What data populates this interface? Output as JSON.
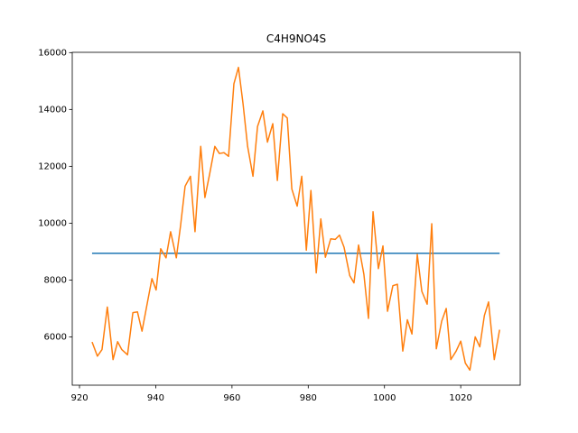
{
  "chart_data": {
    "type": "line",
    "title": "C4H9NO4S",
    "xlim": [
      918.1,
      1035.6
    ],
    "ylim": [
      4300,
      16010
    ],
    "xticks": [
      920,
      940,
      960,
      980,
      1000,
      1020
    ],
    "yticks": [
      6000,
      8000,
      10000,
      12000,
      14000,
      16000
    ],
    "series": [
      {
        "color": "#1f77b4",
        "x": [
          923.3,
          1030.2
        ],
        "values": [
          8940,
          8940
        ]
      },
      {
        "color": "#ff7f0e",
        "x": [
          923.3,
          924.7,
          925.9,
          927.3,
          928.8,
          930,
          931.1,
          932.6,
          934,
          935.2,
          936.4,
          937.8,
          939,
          940.1,
          941.3,
          942.7,
          943.9,
          945.4,
          946.5,
          947.7,
          949.1,
          950.3,
          951.8,
          952.9,
          954.1,
          955.5,
          956.7,
          957.9,
          959.1,
          960.5,
          961.7,
          962.9,
          964.1,
          965.5,
          966.7,
          968.1,
          969.3,
          970.7,
          971.9,
          973.3,
          974.5,
          975.7,
          977.1,
          978.3,
          979.5,
          980.7,
          982.1,
          983.3,
          984.5,
          985.9,
          987.1,
          988.2,
          989.4,
          990.9,
          992,
          993.2,
          994.6,
          995.8,
          997,
          998.4,
          999.6,
          1000.8,
          1002.2,
          1003.4,
          1004.8,
          1006,
          1007.2,
          1008.6,
          1009.8,
          1011.2,
          1012.4,
          1013.6,
          1015,
          1016.2,
          1017.4,
          1018.8,
          1020,
          1021.2,
          1022.4,
          1023.8,
          1025,
          1026.2,
          1027.3,
          1028.8,
          1030.2
        ],
        "values": [
          5820,
          5320,
          5550,
          7050,
          5200,
          5830,
          5550,
          5370,
          6850,
          6880,
          6200,
          7200,
          8050,
          7650,
          9100,
          8780,
          9700,
          8780,
          9900,
          11300,
          11650,
          9700,
          12700,
          10900,
          11700,
          12700,
          12450,
          12480,
          12350,
          14900,
          15480,
          14200,
          12700,
          11650,
          13400,
          13950,
          12850,
          13500,
          11500,
          13850,
          13700,
          11200,
          10600,
          11650,
          9050,
          11150,
          8250,
          10150,
          8800,
          9450,
          9430,
          9580,
          9150,
          8150,
          7900,
          9230,
          8200,
          6650,
          10400,
          8400,
          9200,
          6900,
          7800,
          7850,
          5500,
          6600,
          6100,
          8900,
          7600,
          7150,
          9980,
          5580,
          6550,
          7000,
          5200,
          5500,
          5850,
          5080,
          4830,
          6000,
          5650,
          6750,
          7230,
          5200,
          6250
        ]
      }
    ]
  }
}
